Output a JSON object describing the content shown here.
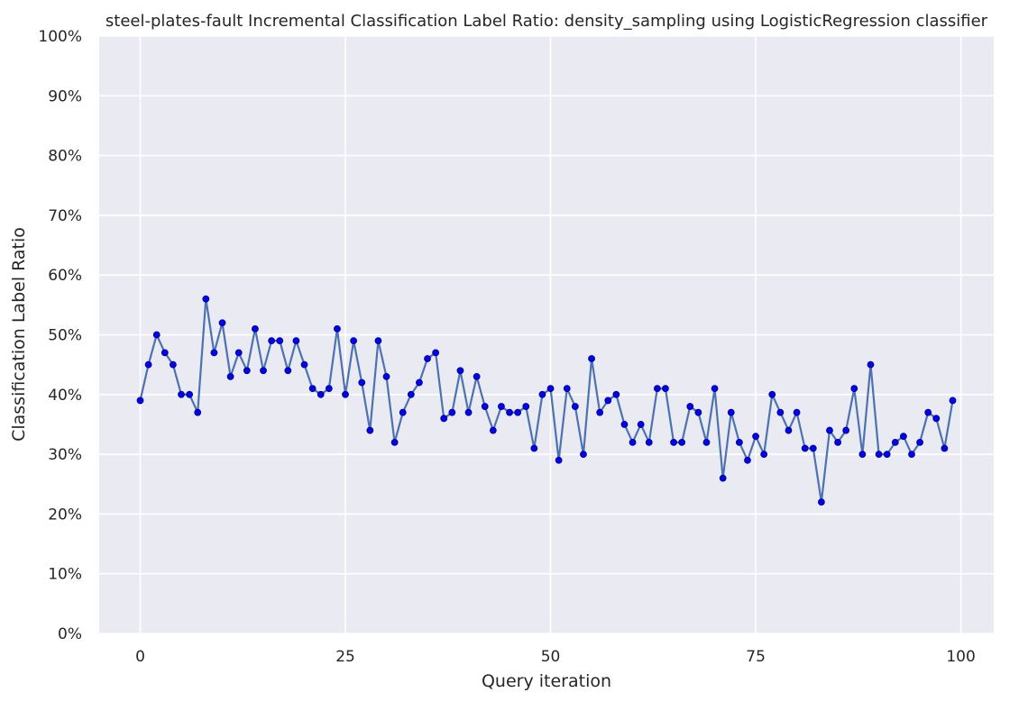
{
  "chart_data": {
    "type": "line",
    "title": "steel-plates-fault Incremental Classification Label Ratio: density_sampling using LogisticRegression classifier",
    "xlabel": "Query iteration",
    "ylabel": "Classification Label Ratio",
    "xlim": [
      -5,
      104
    ],
    "ylim": [
      0,
      1
    ],
    "x_ticks": [
      0,
      25,
      50,
      75,
      100
    ],
    "y_ticks": [
      0,
      0.1,
      0.2,
      0.3,
      0.4,
      0.5,
      0.6,
      0.7,
      0.8,
      0.9,
      1.0
    ],
    "y_tick_labels": [
      "0%",
      "10%",
      "20%",
      "30%",
      "40%",
      "50%",
      "60%",
      "70%",
      "80%",
      "90%",
      "100%"
    ],
    "grid": true,
    "legend": "none",
    "colors": {
      "background": "#eaeaf2",
      "line": "#4c72b0",
      "marker_fill": "#0000ff",
      "marker_edge": "#00008b"
    },
    "series": [
      {
        "x": [
          0,
          1,
          2,
          3,
          4,
          5,
          6,
          7,
          8,
          9,
          10,
          11,
          12,
          13,
          14,
          15,
          16,
          17,
          18,
          19,
          20,
          21,
          22,
          23,
          24,
          25,
          26,
          27,
          28,
          29,
          30,
          31,
          32,
          33,
          34,
          35,
          36,
          37,
          38,
          39,
          40,
          41,
          42,
          43,
          44,
          45,
          46,
          47,
          48,
          49,
          50,
          51,
          52,
          53,
          54,
          55,
          56,
          57,
          58,
          59,
          60,
          61,
          62,
          63,
          64,
          65,
          66,
          67,
          68,
          69,
          70,
          71,
          72,
          73,
          74,
          75,
          76,
          77,
          78,
          79,
          80,
          81,
          82,
          83,
          84,
          85,
          86,
          87,
          88,
          89,
          90,
          91,
          92,
          93,
          94,
          95,
          96,
          97,
          98,
          99
        ],
        "y": [
          0.39,
          0.45,
          0.5,
          0.47,
          0.45,
          0.4,
          0.4,
          0.37,
          0.56,
          0.47,
          0.52,
          0.43,
          0.47,
          0.44,
          0.51,
          0.44,
          0.49,
          0.49,
          0.44,
          0.49,
          0.45,
          0.41,
          0.4,
          0.41,
          0.51,
          0.4,
          0.49,
          0.42,
          0.34,
          0.49,
          0.43,
          0.32,
          0.37,
          0.4,
          0.42,
          0.46,
          0.47,
          0.36,
          0.37,
          0.44,
          0.37,
          0.43,
          0.38,
          0.34,
          0.38,
          0.37,
          0.37,
          0.38,
          0.31,
          0.4,
          0.41,
          0.29,
          0.41,
          0.38,
          0.3,
          0.46,
          0.37,
          0.39,
          0.4,
          0.35,
          0.32,
          0.35,
          0.32,
          0.41,
          0.41,
          0.32,
          0.32,
          0.38,
          0.37,
          0.32,
          0.41,
          0.26,
          0.37,
          0.32,
          0.29,
          0.33,
          0.3,
          0.4,
          0.37,
          0.34,
          0.37,
          0.31,
          0.31,
          0.22,
          0.34,
          0.32,
          0.34,
          0.41,
          0.3,
          0.45,
          0.3,
          0.3,
          0.32,
          0.33,
          0.3,
          0.32,
          0.37,
          0.36,
          0.31,
          0.39
        ]
      }
    ]
  }
}
